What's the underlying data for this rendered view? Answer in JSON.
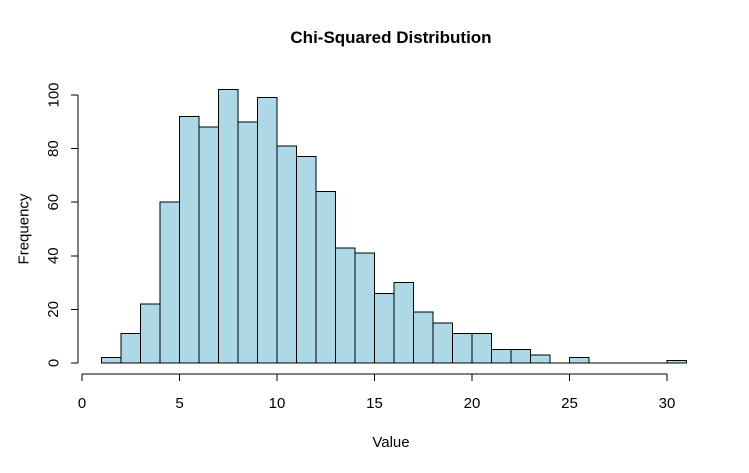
{
  "window": {
    "background": "#FFFFFF"
  },
  "chart_data": {
    "type": "bar",
    "subtype": "histogram",
    "title": "Chi-Squared Distribution",
    "xlabel": "Value",
    "ylabel": "Frequency",
    "bins": {
      "start": 1,
      "width": 1
    },
    "counts": [
      2,
      11,
      22,
      60,
      92,
      88,
      102,
      90,
      99,
      81,
      77,
      64,
      43,
      41,
      26,
      30,
      19,
      15,
      11,
      11,
      5,
      5,
      3,
      0,
      2,
      0,
      0,
      0,
      0,
      1
    ],
    "x_ticks": [
      0,
      5,
      10,
      15,
      20,
      25,
      30
    ],
    "y_ticks": [
      0,
      20,
      40,
      60,
      80,
      100
    ],
    "xlim": [
      0,
      31
    ],
    "ylim": [
      0,
      102
    ],
    "grid": false,
    "legend": "none",
    "colors": {
      "bar_fill": "#ADD8E6",
      "bar_stroke": "#000000",
      "axis": "#000000",
      "text": "#000000",
      "background": "#FFFFFF"
    }
  }
}
